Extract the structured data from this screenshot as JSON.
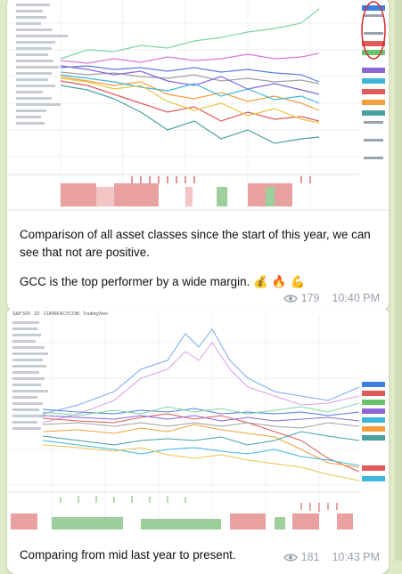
{
  "messages": [
    {
      "caption_line1": "Comparison of all asset classes since the start of this year, we can see that not are positive.",
      "caption_line2": "GCC is the top performer by a wide margin.",
      "emojis": "💰 🔥 💪",
      "views": "179",
      "time": "10:40 PM"
    },
    {
      "caption": "Comparing from mid last year to present.",
      "views": "181",
      "time": "10:43 PM",
      "chart_title": "S&P 500 · 1D · CURRENCYCOM · TradingView"
    }
  ],
  "colors": {
    "chat_background": "#dfe9c7",
    "bubble": "#ffffff",
    "meta_text": "#9aa3ad",
    "annotation": "#d9262b",
    "hist_red": "#e8a0a0",
    "hist_green": "#9ccf9c"
  },
  "icons": [
    "eye-icon"
  ]
}
